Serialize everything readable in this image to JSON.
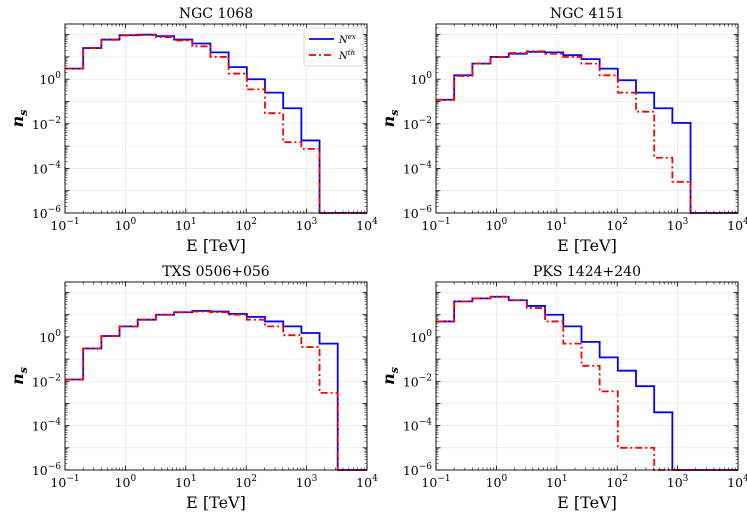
{
  "chart_data": [
    {
      "type": "step",
      "title": "NGC 1068",
      "xlabel": "E [TeV]",
      "ylabel": "n_s",
      "xscale": "log",
      "yscale": "log",
      "xlim": [
        0.1,
        10000
      ],
      "ylim": [
        1e-06,
        300
      ],
      "grid": true,
      "legend": "top-right",
      "bin_edges": [
        0.1,
        0.2,
        0.4,
        0.8,
        1.6,
        3.2,
        6.4,
        12.8,
        25.6,
        51.2,
        102.4,
        204.8,
        409.6,
        819.2,
        1638.4,
        3276.8,
        6553.6,
        10000
      ],
      "series": [
        {
          "name": "N^ex",
          "color": "#0000ff",
          "dash": "solid",
          "values": [
            3,
            25,
            60,
            95,
            100,
            85,
            60,
            40,
            16,
            3.5,
            1.0,
            0.25,
            0.05,
            0.0018,
            1e-06,
            1e-06,
            1e-06
          ]
        },
        {
          "name": "N^th",
          "color": "#ff0000",
          "dash": "dashdot",
          "values": [
            3,
            25,
            58,
            92,
            95,
            78,
            55,
            30,
            10,
            1.8,
            0.35,
            0.03,
            0.0015,
            0.00075,
            1e-06,
            1e-06,
            1e-06
          ]
        }
      ]
    },
    {
      "type": "step",
      "title": "NGC 4151",
      "xlabel": "E [TeV]",
      "ylabel": "n_s",
      "xscale": "log",
      "yscale": "log",
      "xlim": [
        0.1,
        10000
      ],
      "ylim": [
        1e-06,
        300
      ],
      "grid": true,
      "bin_edges": [
        0.1,
        0.2,
        0.4,
        0.8,
        1.6,
        3.2,
        6.4,
        12.8,
        25.6,
        51.2,
        102.4,
        204.8,
        409.6,
        819.2,
        1638.4,
        3276.8,
        6553.6,
        10000
      ],
      "series": [
        {
          "name": "N^ex",
          "color": "#0000ff",
          "dash": "solid",
          "values": [
            0.12,
            1.5,
            5,
            10,
            14,
            17,
            16,
            12,
            8,
            3,
            0.9,
            0.25,
            0.05,
            0.011,
            1e-06,
            1e-06,
            1e-06
          ]
        },
        {
          "name": "N^th",
          "color": "#ff0000",
          "dash": "dashdot",
          "values": [
            0.12,
            1.4,
            5,
            10,
            15,
            18,
            14,
            10,
            5,
            1.5,
            0.25,
            0.035,
            0.0003,
            2.5e-05,
            1e-06,
            1e-06,
            1e-06
          ]
        }
      ]
    },
    {
      "type": "step",
      "title": "TXS 0506+056",
      "xlabel": "E [TeV]",
      "ylabel": "n_s",
      "xscale": "log",
      "yscale": "log",
      "xlim": [
        0.1,
        10000
      ],
      "ylim": [
        1e-06,
        300
      ],
      "grid": true,
      "bin_edges": [
        0.1,
        0.2,
        0.4,
        0.8,
        1.6,
        3.2,
        6.4,
        12.8,
        25.6,
        51.2,
        102.4,
        204.8,
        409.6,
        819.2,
        1638.4,
        3276.8,
        6553.6,
        10000
      ],
      "series": [
        {
          "name": "N^ex",
          "color": "#0000ff",
          "dash": "solid",
          "values": [
            0.012,
            0.3,
            1.1,
            3,
            6,
            10,
            13,
            15,
            14,
            11,
            8,
            5,
            3,
            1.5,
            0.5,
            1e-06,
            1e-06
          ]
        },
        {
          "name": "N^th",
          "color": "#ff0000",
          "dash": "dashdot",
          "values": [
            0.012,
            0.3,
            1.1,
            3,
            6,
            10,
            13,
            14,
            13,
            10,
            6,
            3,
            1.2,
            0.35,
            0.003,
            1e-06,
            1e-06
          ]
        }
      ]
    },
    {
      "type": "step",
      "title": "PKS 1424+240",
      "xlabel": "E [TeV]",
      "ylabel": "n_s",
      "xscale": "log",
      "yscale": "log",
      "xlim": [
        0.1,
        10000
      ],
      "ylim": [
        1e-06,
        300
      ],
      "grid": true,
      "bin_edges": [
        0.1,
        0.2,
        0.4,
        0.8,
        1.6,
        3.2,
        6.4,
        12.8,
        25.6,
        51.2,
        102.4,
        204.8,
        409.6,
        819.2,
        1638.4,
        3276.8,
        6553.6,
        10000
      ],
      "series": [
        {
          "name": "N^ex",
          "color": "#0000ff",
          "dash": "solid",
          "values": [
            5,
            40,
            55,
            65,
            45,
            25,
            10,
            3,
            0.6,
            0.12,
            0.03,
            0.006,
            0.0004,
            1e-06,
            1e-06,
            1e-06,
            1e-06
          ]
        },
        {
          "name": "N^th",
          "color": "#ff0000",
          "dash": "dashdot",
          "values": [
            5,
            40,
            55,
            65,
            45,
            20,
            5,
            0.5,
            0.05,
            0.0035,
            1e-05,
            1e-05,
            1e-06,
            1e-06,
            1e-06,
            1e-06,
            1e-06
          ]
        }
      ]
    }
  ],
  "legend": {
    "entries": [
      {
        "base": "N",
        "sup": "ex",
        "color": "#0000ff",
        "dash": "solid"
      },
      {
        "base": "N",
        "sup": "th",
        "color": "#ff0000",
        "dash": "dashdot"
      }
    ]
  },
  "axes": {
    "x_ticks": [
      {
        "base": "10",
        "exp": "−1",
        "value": 0.1
      },
      {
        "base": "10",
        "exp": "0",
        "value": 1
      },
      {
        "base": "10",
        "exp": "1",
        "value": 10
      },
      {
        "base": "10",
        "exp": "2",
        "value": 100
      },
      {
        "base": "10",
        "exp": "3",
        "value": 1000
      },
      {
        "base": "10",
        "exp": "4",
        "value": 10000
      }
    ],
    "y_ticks": [
      {
        "base": "10",
        "exp": "−6",
        "value": 1e-06
      },
      {
        "base": "10",
        "exp": "−4",
        "value": 0.0001
      },
      {
        "base": "10",
        "exp": "−2",
        "value": 0.01
      },
      {
        "base": "10",
        "exp": "0",
        "value": 1
      }
    ],
    "ylabel_base": "n",
    "ylabel_sub": "s"
  }
}
